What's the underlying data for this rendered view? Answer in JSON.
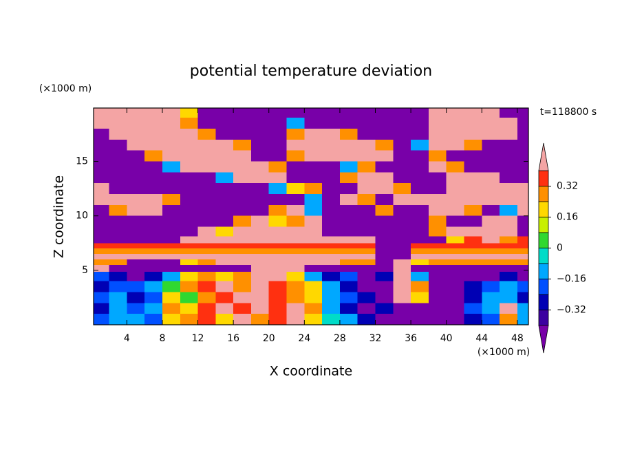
{
  "chart_data": {
    "type": "contour",
    "title": "potential temperature deviation",
    "x_label": "X coordinate",
    "y_label": "Z coordinate",
    "x_unit": "(×1000 m)",
    "y_unit": "(×1000 m)",
    "annotation": "t=118800 s",
    "xlim": [
      0.25,
      49.25
    ],
    "ylim": [
      0,
      19.9
    ],
    "xticks": [
      4,
      8,
      12,
      16,
      20,
      24,
      28,
      32,
      36,
      40,
      44,
      48
    ],
    "yticks": [
      5,
      10,
      15
    ],
    "levels": [
      -0.4,
      -0.32,
      -0.24,
      -0.16,
      -0.08,
      0,
      0.08,
      0.16,
      0.24,
      0.32,
      0.4
    ],
    "colors": [
      "#3c00a0",
      "#0000b4",
      "#0050ff",
      "#00a8ff",
      "#00dcc8",
      "#30d830",
      "#c8f000",
      "#ffd800",
      "#ff9000",
      "#ff3010"
    ],
    "under_color": "#7800a8",
    "over_color": "#f4a4a4",
    "colorbar_ticks": [
      {
        "value": 0.32,
        "label": "0.32"
      },
      {
        "value": 0.16,
        "label": "0.16"
      },
      0,
      {
        "value": -0.16,
        "label": "−0.16"
      },
      {
        "value": -0.32,
        "label": "−0.32"
      }
    ],
    "x": [
      1,
      3,
      5,
      7,
      9,
      11,
      13,
      15,
      17,
      19,
      21,
      23,
      25,
      27,
      29,
      31,
      33,
      35,
      37,
      39,
      41,
      43,
      45,
      47,
      49
    ],
    "z": [
      19.5,
      18.5,
      17.5,
      16.5,
      15.5,
      14.5,
      13.5,
      12.5,
      11.5,
      10.5,
      9.5,
      8.5,
      7.75,
      7.25,
      6.75,
      6.25,
      5.75,
      5.25,
      4.5,
      3.5,
      2.5,
      1.5,
      0.5
    ],
    "field": [
      [
        0.5,
        0.5,
        0.5,
        0.5,
        0.5,
        0.2,
        -0.5,
        -0.5,
        -0.5,
        -0.5,
        -0.5,
        -0.5,
        -0.5,
        -0.5,
        -0.5,
        -0.5,
        -0.5,
        -0.5,
        -0.5,
        0.5,
        0.5,
        0.5,
        0.5,
        -0.5,
        -0.5
      ],
      [
        0.5,
        0.5,
        0.5,
        0.5,
        0.5,
        0.28,
        -0.5,
        -0.5,
        -0.5,
        -0.5,
        -0.5,
        -0.12,
        -0.5,
        -0.5,
        -0.5,
        -0.5,
        -0.5,
        -0.5,
        -0.5,
        0.5,
        0.5,
        0.5,
        0.5,
        0.5,
        -0.5
      ],
      [
        -0.5,
        0.5,
        0.5,
        0.5,
        0.5,
        0.5,
        0.28,
        -0.5,
        -0.5,
        -0.5,
        -0.5,
        0.28,
        0.5,
        0.5,
        0.28,
        -0.5,
        -0.5,
        -0.5,
        -0.5,
        0.5,
        0.5,
        0.5,
        0.5,
        0.5,
        -0.5
      ],
      [
        -0.5,
        -0.5,
        0.5,
        0.5,
        0.5,
        0.5,
        0.5,
        0.5,
        0.28,
        -0.5,
        -0.5,
        0.5,
        0.5,
        0.5,
        0.5,
        0.5,
        0.28,
        -0.5,
        -0.12,
        0.5,
        0.5,
        0.28,
        -0.5,
        -0.5,
        -0.5
      ],
      [
        -0.5,
        -0.5,
        -0.5,
        0.28,
        0.5,
        0.5,
        0.5,
        0.5,
        0.5,
        -0.5,
        -0.5,
        0.28,
        0.5,
        0.5,
        0.5,
        0.5,
        0.5,
        -0.5,
        -0.5,
        0.28,
        -0.5,
        -0.5,
        -0.5,
        -0.5,
        -0.5
      ],
      [
        -0.5,
        -0.5,
        -0.5,
        -0.5,
        -0.12,
        0.5,
        0.5,
        0.5,
        0.5,
        0.5,
        0.28,
        -0.5,
        -0.5,
        -0.5,
        -0.12,
        0.28,
        -0.5,
        -0.5,
        -0.5,
        0.5,
        0.28,
        -0.5,
        -0.5,
        -0.5,
        -0.5
      ],
      [
        -0.5,
        -0.5,
        -0.5,
        -0.5,
        -0.5,
        -0.5,
        -0.5,
        -0.12,
        0.5,
        0.5,
        0.5,
        -0.5,
        -0.5,
        -0.5,
        0.28,
        0.5,
        0.5,
        -0.5,
        -0.5,
        -0.5,
        0.5,
        0.5,
        0.5,
        -0.5,
        -0.5
      ],
      [
        0.5,
        -0.5,
        -0.5,
        -0.5,
        -0.5,
        -0.5,
        -0.5,
        -0.5,
        -0.5,
        -0.5,
        -0.12,
        0.2,
        0.28,
        -0.5,
        -0.5,
        0.5,
        0.5,
        0.28,
        -0.5,
        -0.5,
        0.5,
        0.5,
        0.5,
        0.5,
        0.5
      ],
      [
        0.5,
        0.5,
        0.5,
        0.5,
        0.28,
        -0.5,
        -0.5,
        -0.5,
        -0.5,
        -0.5,
        -0.5,
        -0.5,
        -0.12,
        -0.5,
        0.5,
        0.28,
        -0.5,
        0.5,
        0.5,
        0.5,
        0.5,
        0.5,
        0.5,
        0.5,
        0.5
      ],
      [
        -0.5,
        0.28,
        0.5,
        0.5,
        -0.5,
        -0.5,
        -0.5,
        -0.5,
        -0.5,
        -0.5,
        0.28,
        0.5,
        -0.12,
        -0.5,
        -0.5,
        -0.5,
        0.28,
        -0.5,
        -0.5,
        0.5,
        0.5,
        0.28,
        -0.5,
        -0.12,
        0.5
      ],
      [
        -0.5,
        -0.5,
        -0.5,
        -0.5,
        -0.5,
        -0.5,
        -0.5,
        -0.5,
        0.28,
        0.5,
        0.2,
        0.28,
        0.5,
        -0.5,
        -0.5,
        -0.5,
        -0.5,
        -0.5,
        -0.5,
        0.28,
        -0.5,
        -0.5,
        0.5,
        0.5,
        -0.5
      ],
      [
        -0.5,
        -0.5,
        -0.5,
        -0.5,
        -0.5,
        -0.5,
        0.5,
        0.2,
        0.5,
        0.5,
        0.5,
        0.5,
        0.5,
        -0.5,
        -0.5,
        -0.5,
        -0.5,
        -0.5,
        -0.5,
        0.28,
        0.5,
        0.5,
        0.5,
        0.5,
        -0.5
      ],
      [
        -0.5,
        -0.5,
        -0.5,
        -0.5,
        -0.5,
        0.5,
        0.5,
        0.5,
        0.5,
        0.5,
        0.5,
        0.5,
        0.5,
        0.5,
        0.5,
        0.5,
        -0.5,
        -0.5,
        -0.5,
        -0.5,
        0.2,
        0.36,
        0.5,
        0.28,
        0.36
      ],
      [
        0.36,
        0.36,
        0.36,
        0.36,
        0.36,
        0.36,
        0.36,
        0.36,
        0.36,
        0.36,
        0.36,
        0.36,
        0.36,
        0.36,
        0.36,
        0.36,
        -0.5,
        -0.5,
        0.36,
        0.36,
        0.36,
        0.36,
        0.36,
        0.36,
        0.36
      ],
      [
        0.28,
        0.28,
        0.28,
        0.28,
        0.28,
        0.28,
        0.28,
        0.28,
        0.28,
        0.28,
        0.28,
        0.28,
        0.28,
        0.28,
        0.28,
        0.28,
        -0.5,
        -0.5,
        0.28,
        0.28,
        0.28,
        0.28,
        0.28,
        0.28,
        0.28
      ],
      [
        0.5,
        0.5,
        0.5,
        0.5,
        0.5,
        0.5,
        0.5,
        0.5,
        0.5,
        0.5,
        0.5,
        0.5,
        0.5,
        0.5,
        0.5,
        0.5,
        -0.5,
        -0.5,
        0.5,
        0.5,
        0.5,
        0.5,
        0.5,
        0.5,
        0.5
      ],
      [
        0.28,
        0.28,
        -0.5,
        -0.5,
        -0.5,
        0.2,
        0.28,
        0.5,
        0.5,
        0.5,
        0.5,
        0.5,
        0.5,
        0.5,
        0.28,
        0.28,
        -0.5,
        0.5,
        0.2,
        0.28,
        0.28,
        0.28,
        0.28,
        0.28,
        0.28
      ],
      [
        0.5,
        -0.5,
        -0.5,
        -0.5,
        -0.5,
        -0.5,
        -0.5,
        -0.5,
        -0.5,
        0.5,
        0.5,
        0.5,
        -0.5,
        -0.5,
        -0.5,
        -0.5,
        -0.5,
        0.5,
        -0.5,
        -0.5,
        -0.5,
        -0.5,
        -0.5,
        -0.5,
        -0.5
      ],
      [
        -0.2,
        -0.28,
        -0.5,
        -0.28,
        -0.12,
        0.2,
        0.28,
        0.2,
        0.28,
        0.5,
        0.5,
        0.2,
        -0.12,
        -0.28,
        -0.2,
        -0.5,
        -0.28,
        0.5,
        -0.12,
        -0.5,
        -0.5,
        -0.5,
        -0.5,
        -0.28,
        -0.5
      ],
      [
        -0.28,
        -0.2,
        -0.2,
        -0.12,
        0.04,
        0.28,
        0.36,
        0.5,
        0.28,
        0.5,
        0.36,
        0.28,
        0.2,
        -0.12,
        -0.28,
        -0.5,
        -0.5,
        0.5,
        0.28,
        -0.5,
        -0.5,
        -0.28,
        -0.2,
        -0.12,
        -0.2
      ],
      [
        -0.2,
        -0.12,
        -0.28,
        -0.2,
        0.2,
        0.04,
        0.28,
        0.36,
        0.5,
        0.5,
        0.36,
        0.28,
        0.2,
        -0.12,
        -0.2,
        -0.28,
        -0.5,
        0.5,
        0.2,
        -0.5,
        -0.5,
        -0.28,
        -0.12,
        -0.12,
        -0.28
      ],
      [
        -0.28,
        -0.12,
        -0.2,
        -0.12,
        0.28,
        0.2,
        0.36,
        0.5,
        0.36,
        0.5,
        0.36,
        0.5,
        0.28,
        -0.12,
        -0.28,
        -0.5,
        -0.28,
        -0.5,
        -0.5,
        -0.5,
        -0.5,
        -0.2,
        -0.12,
        0.5,
        -0.12
      ],
      [
        -0.2,
        -0.12,
        -0.12,
        -0.2,
        0.2,
        0.28,
        0.36,
        0.2,
        0.5,
        0.28,
        0.36,
        0.5,
        0.2,
        -0.04,
        -0.12,
        -0.28,
        -0.5,
        -0.5,
        -0.5,
        -0.5,
        -0.5,
        -0.28,
        -0.2,
        0.28,
        -0.12
      ]
    ]
  }
}
